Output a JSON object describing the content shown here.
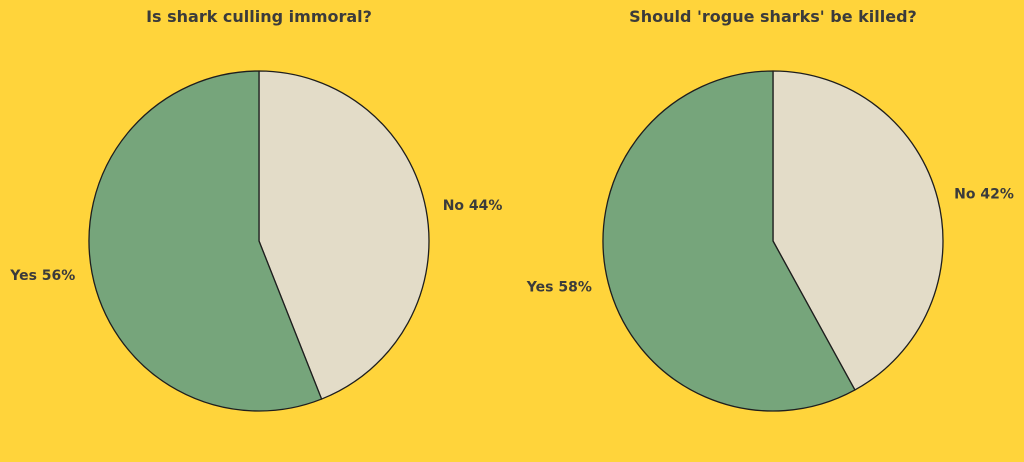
{
  "background_color": "#FFD43B",
  "text_color": "#3B3B3B",
  "edge_color": "#1E1E1E",
  "chart_data": [
    {
      "type": "pie",
      "title": "Is shark culling immoral?",
      "start": "12 o'clock",
      "direction": "clockwise",
      "slices": [
        {
          "label": "No",
          "value": 44,
          "text": "No 44%",
          "color": "#E3DCC8"
        },
        {
          "label": "Yes",
          "value": 56,
          "text": "Yes 56%",
          "color": "#76A57B"
        }
      ]
    },
    {
      "type": "pie",
      "title": "Should 'rogue sharks' be killed?",
      "start": "12 o'clock",
      "direction": "clockwise",
      "slices": [
        {
          "label": "No",
          "value": 42,
          "text": "No 42%",
          "color": "#E3DCC8"
        },
        {
          "label": "Yes",
          "value": 58,
          "text": "Yes 58%",
          "color": "#76A57B"
        }
      ]
    }
  ]
}
